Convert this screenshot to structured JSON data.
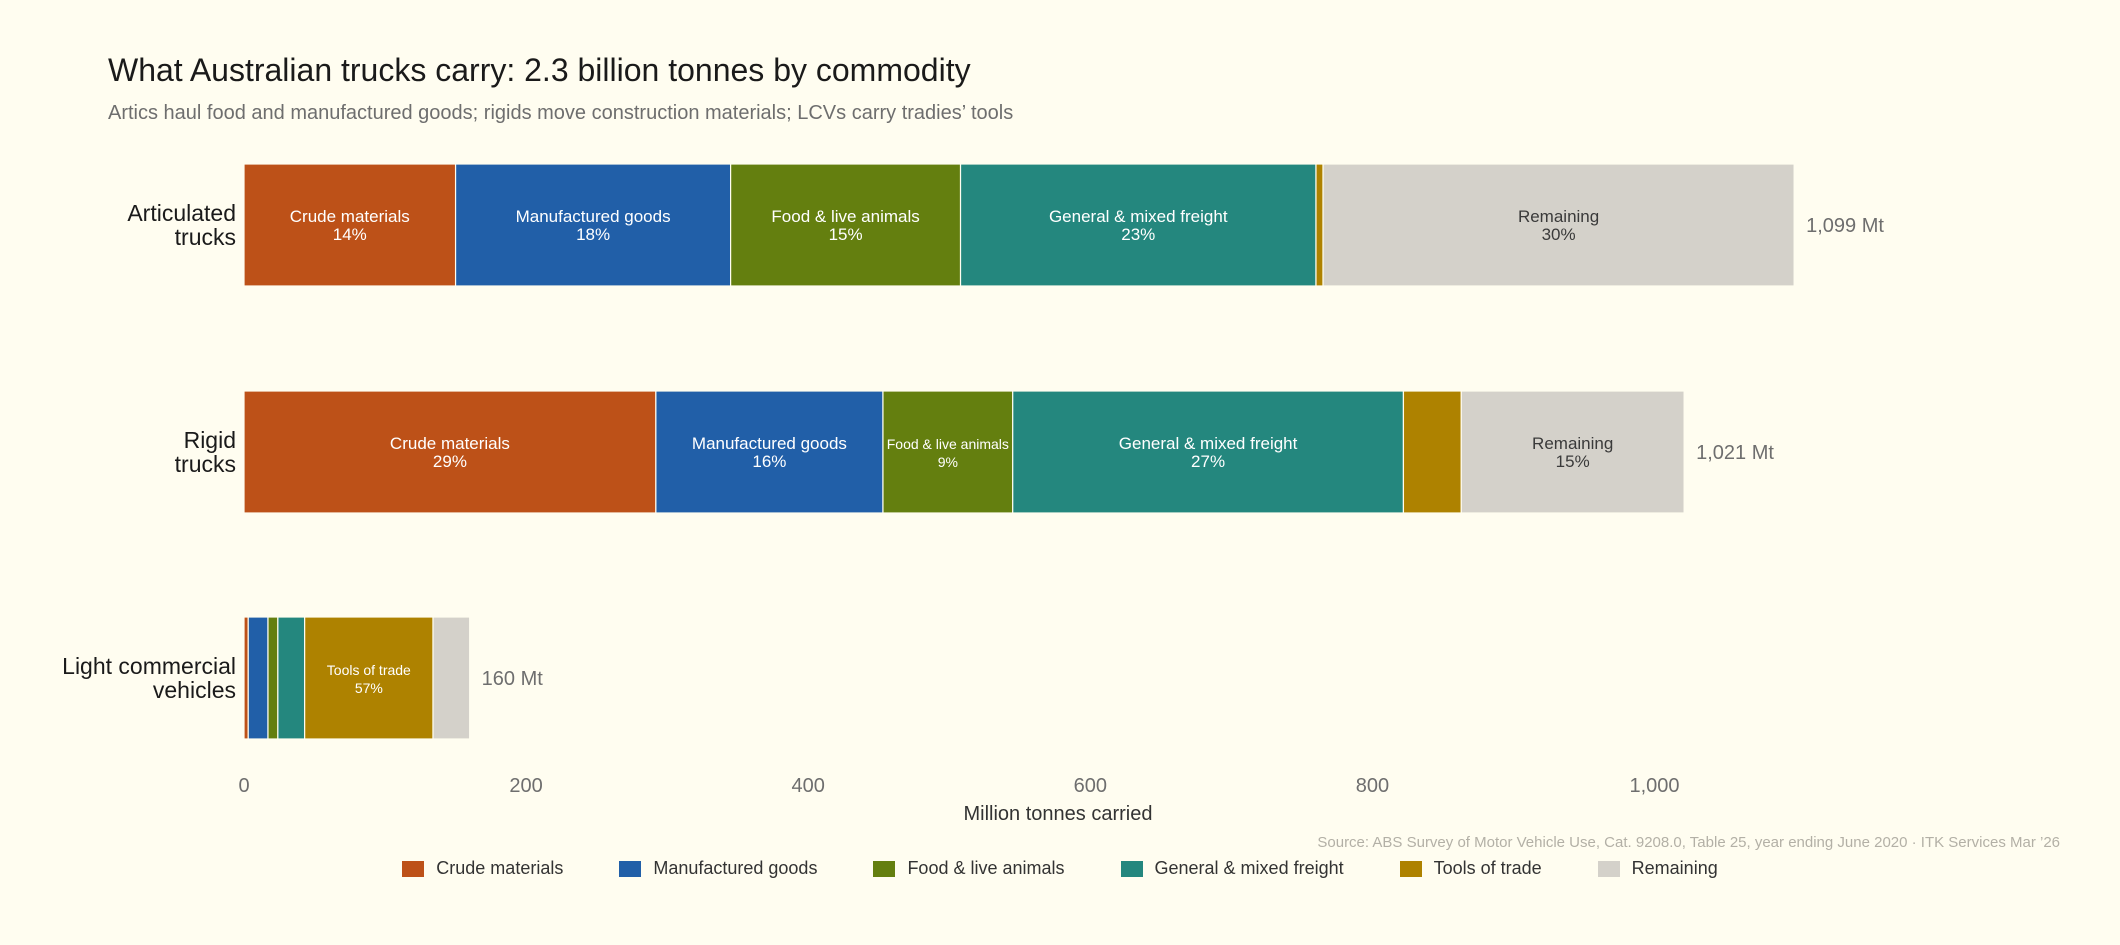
{
  "title": "What Australian trucks carry: 2.3 billion tonnes by commodity",
  "subtitle": "Artics haul food and manufactured goods; rigids move construction materials; LCVs carry tradies’ tools",
  "source": "Source: ABS Survey of Motor Vehicle Use, Cat. 9208.0, Table 25, year ending June 2020  ·  ITK Services Mar ’26",
  "colors": {
    "Crude materials": "#bd5118",
    "Manufactured goods": "#215fa8",
    "Food & live animals": "#647f0f",
    "General & mixed freight": "#24877e",
    "Tools of trade": "#ae8200",
    "Remaining": "#d4d1ca"
  },
  "legend": [
    "Crude materials",
    "Manufactured goods",
    "Food & live animals",
    "General & mixed freight",
    "Tools of trade",
    "Remaining"
  ],
  "chart_data": {
    "type": "bar",
    "orientation": "horizontal",
    "stacked": true,
    "title": "What Australian trucks carry: 2.3 billion tonnes by commodity",
    "subtitle": "Artics haul food and manufactured goods; rigids move construction materials; LCVs carry tradies’ tools",
    "xlabel": "Million tonnes carried",
    "xlim": [
      0,
      1100
    ],
    "xticks": [
      0,
      200,
      400,
      600,
      800,
      1000
    ],
    "xtick_labels": [
      "0",
      "200",
      "400",
      "600",
      "800",
      "1,000"
    ],
    "categories": [
      {
        "label": [
          "Articulated",
          "trucks"
        ],
        "total_label": "1,099 Mt"
      },
      {
        "label": [
          "Rigid",
          "trucks"
        ],
        "total_label": "1,021 Mt"
      },
      {
        "label": [
          "Light commercial",
          "vehicles"
        ],
        "total_label": "160 Mt"
      }
    ],
    "series": [
      {
        "name": "Crude materials",
        "values": [
          150,
          292,
          3
        ],
        "labels": [
          "14%",
          "29%",
          ""
        ]
      },
      {
        "name": "Manufactured goods",
        "values": [
          195,
          161,
          14
        ],
        "labels": [
          "18%",
          "16%",
          ""
        ]
      },
      {
        "name": "Food & live animals",
        "values": [
          163,
          92,
          7
        ],
        "labels": [
          "15%",
          "9%",
          ""
        ]
      },
      {
        "name": "General & mixed freight",
        "values": [
          252,
          277,
          19
        ],
        "labels": [
          "23%",
          "27%",
          ""
        ]
      },
      {
        "name": "Tools of trade",
        "values": [
          5,
          41,
          91
        ],
        "labels": [
          "",
          "",
          "57%"
        ]
      },
      {
        "name": "Remaining",
        "values": [
          334,
          158,
          26
        ],
        "labels": [
          "30%",
          "15%",
          ""
        ]
      }
    ],
    "grid": false,
    "legend_position": "bottom"
  }
}
